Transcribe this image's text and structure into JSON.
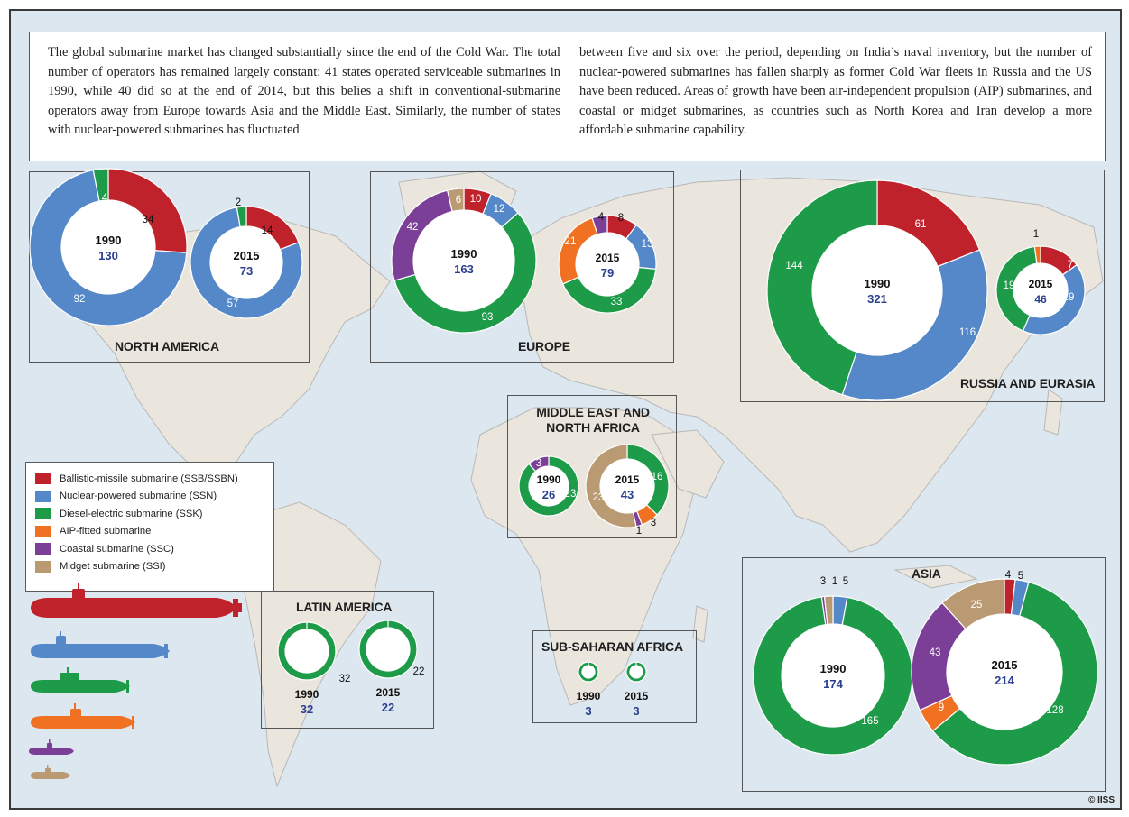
{
  "intro": {
    "left": "The global submarine market has changed substantially since the end of the Cold War. The total number of operators has remained largely constant: 41 states operated serviceable submarines in 1990, while 40 did so at the end of 2014, but this belies a shift in conventional-submarine operators away from Europe towards Asia and the Middle East. Similarly, the number of states with nuclear-powered submarines has fluctuated",
    "right": "between five and six over the period, depending on India’s naval inventory, but the number of nuclear-powered submarines has fallen sharply as former Cold War fleets in Russia and the US have been reduced. Areas of growth have been air-independent propulsion (AIP) submarines, and coastal or midget submarines, as countries such as North Korea and Iran develop a more affordable submarine capability."
  },
  "colors": {
    "SSB": "#c0222b",
    "SSN": "#5488c9",
    "SSK": "#1e9b48",
    "AIP": "#f07122",
    "SSC": "#7c3f98",
    "SSI": "#b99a73",
    "total": "#2b3f8f",
    "sea": "#dde7ef",
    "land": "#ebe6dd"
  },
  "legend": {
    "items": [
      {
        "key": "SSB",
        "label": "Ballistic-missile submarine (SSB/SSBN)"
      },
      {
        "key": "SSN",
        "label": "Nuclear-powered submarine (SSN)"
      },
      {
        "key": "SSK",
        "label": "Diesel-electric submarine (SSK)"
      },
      {
        "key": "AIP",
        "label": "AIP-fitted submarine"
      },
      {
        "key": "SSC",
        "label": "Coastal submarine (SSC)"
      },
      {
        "key": "SSI",
        "label": "Midget submarine (SSI)"
      }
    ]
  },
  "copyright": "© IISS",
  "chart_data": {
    "type": "donut",
    "regions": [
      {
        "name": "NORTH AMERICA",
        "charts": [
          {
            "year": "1990",
            "total": "130",
            "segments": [
              {
                "key": "SSB",
                "value": 34
              },
              {
                "key": "SSN",
                "value": 92
              },
              {
                "key": "SSK",
                "value": 4
              }
            ]
          },
          {
            "year": "2015",
            "total": "73",
            "segments": [
              {
                "key": "SSB",
                "value": 14
              },
              {
                "key": "SSN",
                "value": 57
              },
              {
                "key": "SSK",
                "value": 2
              }
            ]
          }
        ]
      },
      {
        "name": "EUROPE",
        "charts": [
          {
            "year": "1990",
            "total": "163",
            "segments": [
              {
                "key": "SSB",
                "value": 10
              },
              {
                "key": "SSN",
                "value": 12
              },
              {
                "key": "SSK",
                "value": 93
              },
              {
                "key": "SSC",
                "value": 42
              },
              {
                "key": "SSI",
                "value": 6
              }
            ]
          },
          {
            "year": "2015",
            "total": "79",
            "segments": [
              {
                "key": "SSB",
                "value": 8
              },
              {
                "key": "SSN",
                "value": 13
              },
              {
                "key": "SSK",
                "value": 33
              },
              {
                "key": "AIP",
                "value": 21
              },
              {
                "key": "SSC",
                "value": 4
              }
            ]
          }
        ]
      },
      {
        "name": "RUSSIA AND EURASIA",
        "charts": [
          {
            "year": "1990",
            "total": "321",
            "segments": [
              {
                "key": "SSB",
                "value": 61
              },
              {
                "key": "SSN",
                "value": 116
              },
              {
                "key": "SSK",
                "value": 144
              }
            ]
          },
          {
            "year": "2015",
            "total": "46",
            "segments": [
              {
                "key": "SSB",
                "value": 7
              },
              {
                "key": "SSN",
                "value": 19
              },
              {
                "key": "SSK",
                "value": 19
              },
              {
                "key": "AIP",
                "value": 1
              }
            ]
          }
        ]
      },
      {
        "name": "MIDDLE EAST AND NORTH AFRICA",
        "charts": [
          {
            "year": "1990",
            "total": "26",
            "segments": [
              {
                "key": "SSK",
                "value": 23
              },
              {
                "key": "SSC",
                "value": 3
              }
            ]
          },
          {
            "year": "2015",
            "total": "43",
            "segments": [
              {
                "key": "SSK",
                "value": 16
              },
              {
                "key": "AIP",
                "value": 3
              },
              {
                "key": "SSC",
                "value": 1
              },
              {
                "key": "SSI",
                "value": 23
              }
            ]
          }
        ]
      },
      {
        "name": "LATIN AMERICA",
        "charts": [
          {
            "year": "1990",
            "total": "32",
            "segments": [
              {
                "key": "SSK",
                "value": 32
              }
            ]
          },
          {
            "year": "2015",
            "total": "22",
            "segments": [
              {
                "key": "SSK",
                "value": 22
              }
            ]
          }
        ]
      },
      {
        "name": "SUB-SAHARAN AFRICA",
        "charts": [
          {
            "year": "1990",
            "total": "3",
            "segments": [
              {
                "key": "SSK",
                "value": 3
              }
            ]
          },
          {
            "year": "2015",
            "total": "3",
            "segments": [
              {
                "key": "SSK",
                "value": 3
              }
            ]
          }
        ]
      },
      {
        "name": "ASIA",
        "charts": [
          {
            "year": "1990",
            "total": "174",
            "segments": [
              {
                "key": "SSN",
                "value": 5
              },
              {
                "key": "SSK",
                "value": 165
              },
              {
                "key": "SSC",
                "value": 1
              },
              {
                "key": "SSI",
                "value": 3
              }
            ]
          },
          {
            "year": "2015",
            "total": "214",
            "segments": [
              {
                "key": "SSB",
                "value": 4
              },
              {
                "key": "SSN",
                "value": 5
              },
              {
                "key": "SSK",
                "value": 128
              },
              {
                "key": "AIP",
                "value": 9
              },
              {
                "key": "SSC",
                "value": 43
              },
              {
                "key": "SSI",
                "value": 25
              }
            ]
          }
        ]
      }
    ]
  }
}
